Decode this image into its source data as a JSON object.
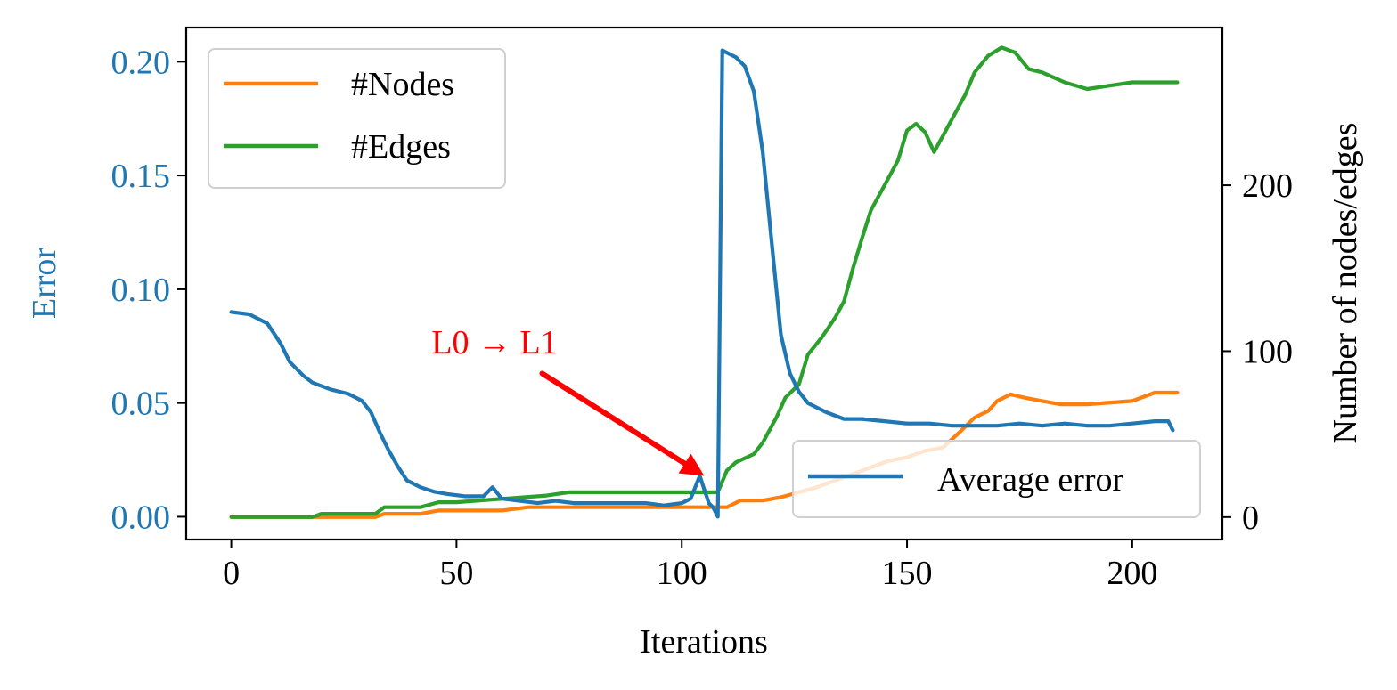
{
  "chart_data": {
    "type": "line",
    "xlabel": "Iterations",
    "ylabel_left": "Error",
    "ylabel_right": "Number of nodes/edges",
    "xlim": [
      -10,
      220
    ],
    "ylim_left": [
      -0.01,
      0.215
    ],
    "ylim_right": [
      -13.5,
      295
    ],
    "x_ticks": [
      0,
      50,
      100,
      150,
      200
    ],
    "x_tick_labels": [
      "0",
      "50",
      "100",
      "150",
      "200"
    ],
    "y_left_ticks": [
      0.0,
      0.05,
      0.1,
      0.15,
      0.2
    ],
    "y_left_tick_labels": [
      "0.00",
      "0.05",
      "0.10",
      "0.15",
      "0.20"
    ],
    "y_right_ticks": [
      0,
      100,
      200
    ],
    "y_right_tick_labels": [
      "0",
      "100",
      "200"
    ],
    "grid": false,
    "left_axis_color": "#1f77b4",
    "series": [
      {
        "name": "#Nodes",
        "axis": "right",
        "color": "#ff7f0e",
        "points": [
          [
            0,
            0
          ],
          [
            20,
            0
          ],
          [
            32,
            0
          ],
          [
            34,
            2
          ],
          [
            42,
            2
          ],
          [
            46,
            4
          ],
          [
            60,
            4
          ],
          [
            66,
            6
          ],
          [
            90,
            6
          ],
          [
            110,
            6
          ],
          [
            113,
            10
          ],
          [
            118,
            10
          ],
          [
            122,
            12
          ],
          [
            126,
            15
          ],
          [
            130,
            18
          ],
          [
            134,
            22
          ],
          [
            138,
            26
          ],
          [
            142,
            30
          ],
          [
            146,
            34
          ],
          [
            150,
            36
          ],
          [
            154,
            40
          ],
          [
            158,
            42
          ],
          [
            162,
            52
          ],
          [
            165,
            60
          ],
          [
            168,
            64
          ],
          [
            170,
            70
          ],
          [
            173,
            74
          ],
          [
            176,
            72
          ],
          [
            180,
            70
          ],
          [
            184,
            68
          ],
          [
            190,
            68
          ],
          [
            200,
            70
          ],
          [
            205,
            75
          ],
          [
            210,
            75
          ]
        ]
      },
      {
        "name": "#Edges",
        "axis": "right",
        "color": "#2ca02c",
        "points": [
          [
            0,
            0
          ],
          [
            18,
            0
          ],
          [
            20,
            2
          ],
          [
            32,
            2
          ],
          [
            34,
            6
          ],
          [
            42,
            6
          ],
          [
            46,
            9
          ],
          [
            50,
            9
          ],
          [
            60,
            11
          ],
          [
            70,
            13
          ],
          [
            75,
            15
          ],
          [
            85,
            15
          ],
          [
            95,
            15
          ],
          [
            108,
            15
          ],
          [
            110,
            28
          ],
          [
            112,
            33
          ],
          [
            116,
            38
          ],
          [
            118,
            45
          ],
          [
            121,
            60
          ],
          [
            123,
            72
          ],
          [
            126,
            80
          ],
          [
            128,
            98
          ],
          [
            131,
            108
          ],
          [
            134,
            120
          ],
          [
            136,
            130
          ],
          [
            138,
            150
          ],
          [
            140,
            168
          ],
          [
            142,
            185
          ],
          [
            145,
            200
          ],
          [
            148,
            215
          ],
          [
            150,
            233
          ],
          [
            152,
            237
          ],
          [
            154,
            232
          ],
          [
            156,
            220
          ],
          [
            158,
            230
          ],
          [
            161,
            245
          ],
          [
            163,
            255
          ],
          [
            165,
            268
          ],
          [
            168,
            278
          ],
          [
            171,
            283
          ],
          [
            174,
            280
          ],
          [
            177,
            270
          ],
          [
            180,
            268
          ],
          [
            185,
            262
          ],
          [
            190,
            258
          ],
          [
            195,
            260
          ],
          [
            200,
            262
          ],
          [
            210,
            262
          ]
        ]
      },
      {
        "name": "Average error",
        "axis": "left",
        "color": "#1f77b4",
        "points": [
          [
            0,
            0.09
          ],
          [
            4,
            0.089
          ],
          [
            8,
            0.085
          ],
          [
            11,
            0.076
          ],
          [
            13,
            0.068
          ],
          [
            16,
            0.062
          ],
          [
            18,
            0.059
          ],
          [
            22,
            0.056
          ],
          [
            26,
            0.054
          ],
          [
            29,
            0.051
          ],
          [
            31,
            0.046
          ],
          [
            33,
            0.037
          ],
          [
            35,
            0.029
          ],
          [
            37,
            0.022
          ],
          [
            39,
            0.016
          ],
          [
            42,
            0.013
          ],
          [
            45,
            0.011
          ],
          [
            48,
            0.01
          ],
          [
            52,
            0.009
          ],
          [
            56,
            0.009
          ],
          [
            58,
            0.013
          ],
          [
            60,
            0.008
          ],
          [
            64,
            0.007
          ],
          [
            68,
            0.006
          ],
          [
            72,
            0.007
          ],
          [
            76,
            0.006
          ],
          [
            80,
            0.006
          ],
          [
            84,
            0.006
          ],
          [
            88,
            0.006
          ],
          [
            92,
            0.006
          ],
          [
            96,
            0.005
          ],
          [
            100,
            0.006
          ],
          [
            102,
            0.008
          ],
          [
            104,
            0.018
          ],
          [
            106,
            0.006
          ],
          [
            107,
            0.004
          ],
          [
            108,
            0.0
          ],
          [
            109,
            0.205
          ],
          [
            112,
            0.202
          ],
          [
            114,
            0.198
          ],
          [
            116,
            0.187
          ],
          [
            118,
            0.16
          ],
          [
            120,
            0.12
          ],
          [
            122,
            0.08
          ],
          [
            124,
            0.063
          ],
          [
            126,
            0.055
          ],
          [
            128,
            0.05
          ],
          [
            132,
            0.046
          ],
          [
            136,
            0.043
          ],
          [
            140,
            0.043
          ],
          [
            145,
            0.042
          ],
          [
            150,
            0.041
          ],
          [
            155,
            0.041
          ],
          [
            160,
            0.04
          ],
          [
            165,
            0.04
          ],
          [
            170,
            0.04
          ],
          [
            175,
            0.041
          ],
          [
            180,
            0.04
          ],
          [
            185,
            0.041
          ],
          [
            190,
            0.04
          ],
          [
            195,
            0.04
          ],
          [
            200,
            0.041
          ],
          [
            205,
            0.042
          ],
          [
            208,
            0.042
          ],
          [
            209,
            0.038
          ]
        ]
      }
    ],
    "legend_upper": {
      "position": "upper-left",
      "entries": [
        "#Nodes",
        "#Edges"
      ]
    },
    "legend_lower": {
      "position": "lower-right",
      "entries": [
        "Average error"
      ]
    },
    "annotation": {
      "text": "L0 → L1",
      "color": "#ff0000",
      "arrow_from": [
        69,
        0.063
      ],
      "arrow_to": [
        105,
        0.018
      ]
    }
  }
}
